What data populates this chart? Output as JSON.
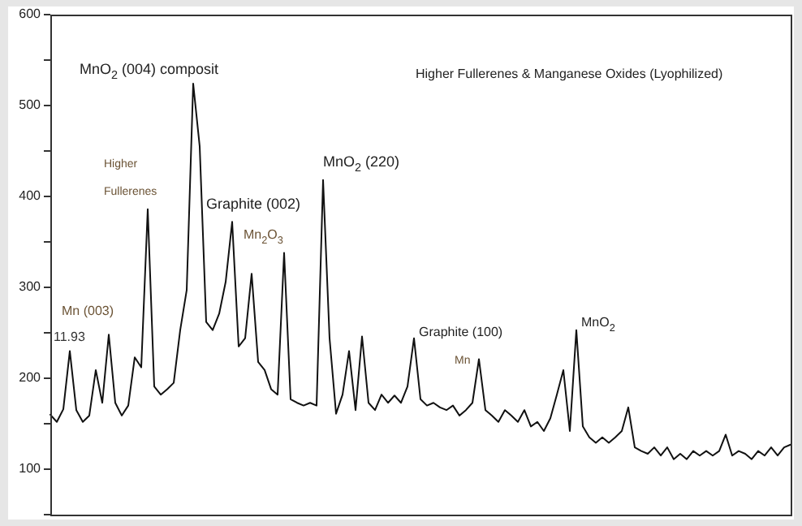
{
  "chart_data": {
    "type": "line",
    "title": "Higher Fullerenes & Manganese Oxides (Lyophilized)",
    "annotations": [
      "MnO$_{2}$ (004) composit",
      "Higher",
      "Fullerenes",
      "Graphite (002)",
      "Mn$_{2}$O$_{3}$",
      "MnO$_{2}$ (220)",
      "Mn (003)",
      "11.93",
      "Graphite (100)",
      "Mn",
      "MnO$_{2}$"
    ],
    "categories": [
      null,
      null,
      null,
      null,
      null,
      null,
      null,
      null,
      null,
      null,
      null,
      null,
      null,
      null,
      null,
      null,
      null,
      null,
      null,
      null,
      null,
      null,
      null,
      null,
      null,
      null,
      null,
      null,
      null,
      null,
      null,
      null,
      null,
      null,
      null,
      null,
      null,
      null,
      null,
      null,
      null,
      null,
      null,
      null,
      null,
      null,
      null,
      null,
      null,
      null,
      null,
      null,
      null,
      null,
      null,
      null,
      null,
      null,
      null,
      null,
      null,
      null,
      null,
      null,
      null,
      null,
      null,
      null,
      null,
      null,
      null,
      null,
      null,
      null,
      null,
      null,
      null,
      null,
      null,
      null,
      null,
      null,
      null,
      null,
      null,
      null,
      null,
      null,
      null,
      null,
      null,
      null,
      null,
      null,
      null,
      null,
      null,
      null,
      null,
      null,
      null,
      null,
      null,
      null,
      null,
      null,
      null,
      null,
      null,
      null,
      null,
      null,
      null,
      null,
      null
    ],
    "series": [
      {
        "color": "#111111",
        "values": [
          160,
          152,
          166,
          230,
          165,
          152,
          159,
          209,
          173,
          248,
          173,
          159,
          170,
          223,
          212,
          386,
          191,
          182,
          188,
          195,
          253,
          297,
          524,
          455,
          262,
          253,
          271,
          306,
          372,
          235,
          244,
          315,
          218,
          209,
          188,
          182,
          338,
          177,
          173,
          170,
          173,
          170,
          418,
          244,
          161,
          182,
          230,
          165,
          246,
          173,
          165,
          182,
          173,
          181,
          173,
          191,
          244,
          177,
          170,
          173,
          168,
          165,
          170,
          159,
          165,
          173,
          221,
          165,
          159,
          152,
          165,
          159,
          152,
          165,
          147,
          152,
          142,
          156,
          182,
          209,
          142,
          253,
          147,
          135,
          129,
          135,
          129,
          135,
          142,
          168,
          124,
          120,
          117,
          124,
          115,
          124,
          111,
          117,
          111,
          120,
          115,
          120,
          115,
          120,
          138,
          115,
          120,
          117,
          111,
          120,
          115,
          124,
          115,
          124,
          127
        ]
      }
    ],
    "ylim": [
      50,
      600
    ],
    "yticks": [
      {
        "value": 50,
        "label": null
      },
      100,
      {
        "value": 150,
        "label": null
      },
      200,
      {
        "value": 250,
        "label": null
      },
      300,
      {
        "value": 350,
        "label": null
      },
      400,
      {
        "value": 450,
        "label": null
      },
      500,
      {
        "value": 550,
        "label": null
      },
      600
    ],
    "grid": false,
    "legend": false,
    "marker": "none",
    "line_style": "solid",
    "tick_labels": "y"
  }
}
